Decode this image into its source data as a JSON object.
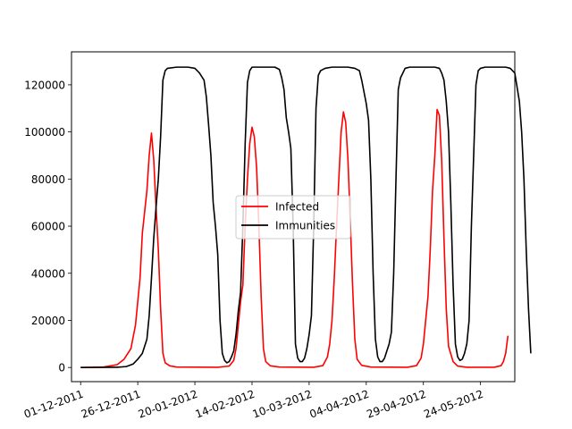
{
  "chart_data": {
    "type": "line",
    "title": "",
    "xlabel": "",
    "ylabel": "",
    "x_ticks": [
      "01-12-2011",
      "26-12-2011",
      "20-01-2012",
      "14-02-2012",
      "10-03-2012",
      "04-04-2012",
      "29-04-2012",
      "24-05-2012"
    ],
    "y_ticks": [
      0,
      20000,
      40000,
      60000,
      80000,
      100000,
      120000
    ],
    "y_tick_labels": [
      "0",
      "20000",
      "40000",
      "60000",
      "80000",
      "100000",
      "120000"
    ],
    "xlim": [
      "27-11-2011",
      "08-06-2012"
    ],
    "ylim": [
      -6000,
      134000
    ],
    "grid": false,
    "legend_position": "center",
    "series": [
      {
        "name": "Infected",
        "color": "#ff0000",
        "points": [
          [
            "01-12-2011",
            0
          ],
          [
            "11-12-2011",
            200
          ],
          [
            "17-12-2011",
            1200
          ],
          [
            "20-12-2011",
            3500
          ],
          [
            "23-12-2011",
            8000
          ],
          [
            "25-12-2011",
            18000
          ],
          [
            "27-12-2011",
            38000
          ],
          [
            "28-12-2011",
            57000
          ],
          [
            "29-12-2011",
            66000
          ],
          [
            "30-12-2011",
            75000
          ],
          [
            "31-12-2011",
            90000
          ],
          [
            "01-01-2012",
            99500
          ],
          [
            "02-01-2012",
            88000
          ],
          [
            "03-01-2012",
            68000
          ],
          [
            "04-01-2012",
            50000
          ],
          [
            "05-01-2012",
            25000
          ],
          [
            "06-01-2012",
            6000
          ],
          [
            "07-01-2012",
            2000
          ],
          [
            "09-01-2012",
            700
          ],
          [
            "12-01-2012",
            200
          ],
          [
            "30-01-2012",
            100
          ],
          [
            "04-02-2012",
            600
          ],
          [
            "06-02-2012",
            3000
          ],
          [
            "07-02-2012",
            8000
          ],
          [
            "08-02-2012",
            18000
          ],
          [
            "09-02-2012",
            28000
          ],
          [
            "10-02-2012",
            35000
          ],
          [
            "11-02-2012",
            60000
          ],
          [
            "12-02-2012",
            80000
          ],
          [
            "13-02-2012",
            95000
          ],
          [
            "14-02-2012",
            102000
          ],
          [
            "15-02-2012",
            98000
          ],
          [
            "16-02-2012",
            85000
          ],
          [
            "17-02-2012",
            60000
          ],
          [
            "18-02-2012",
            30000
          ],
          [
            "19-02-2012",
            8000
          ],
          [
            "20-02-2012",
            2500
          ],
          [
            "22-02-2012",
            700
          ],
          [
            "26-02-2012",
            200
          ],
          [
            "12-03-2012",
            100
          ],
          [
            "16-03-2012",
            800
          ],
          [
            "18-03-2012",
            4500
          ],
          [
            "19-03-2012",
            10000
          ],
          [
            "20-03-2012",
            20000
          ],
          [
            "21-03-2012",
            38000
          ],
          [
            "22-03-2012",
            60000
          ],
          [
            "23-03-2012",
            80000
          ],
          [
            "24-03-2012",
            100000
          ],
          [
            "25-03-2012",
            108500
          ],
          [
            "26-03-2012",
            104000
          ],
          [
            "27-03-2012",
            88000
          ],
          [
            "28-03-2012",
            62000
          ],
          [
            "29-03-2012",
            35000
          ],
          [
            "30-03-2012",
            12000
          ],
          [
            "31-03-2012",
            3500
          ],
          [
            "02-04-2012",
            900
          ],
          [
            "06-04-2012",
            200
          ],
          [
            "22-04-2012",
            100
          ],
          [
            "26-04-2012",
            800
          ],
          [
            "28-04-2012",
            4000
          ],
          [
            "29-04-2012",
            10000
          ],
          [
            "01-05-2012",
            30000
          ],
          [
            "02-05-2012",
            50000
          ],
          [
            "03-05-2012",
            75000
          ],
          [
            "04-05-2012",
            90000
          ],
          [
            "05-05-2012",
            109500
          ],
          [
            "06-05-2012",
            107000
          ],
          [
            "07-05-2012",
            88000
          ],
          [
            "08-05-2012",
            55000
          ],
          [
            "09-05-2012",
            25000
          ],
          [
            "10-05-2012",
            9000
          ],
          [
            "12-05-2012",
            2500
          ],
          [
            "14-05-2012",
            600
          ],
          [
            "18-05-2012",
            100
          ],
          [
            "30-05-2012",
            100
          ],
          [
            "02-06-2012",
            800
          ],
          [
            "03-06-2012",
            2500
          ],
          [
            "04-06-2012",
            6000
          ],
          [
            "05-06-2012",
            13500
          ]
        ]
      },
      {
        "name": "Immunities",
        "color": "#000000",
        "points": [
          [
            "01-12-2011",
            0
          ],
          [
            "17-12-2011",
            100
          ],
          [
            "21-12-2011",
            400
          ],
          [
            "24-12-2011",
            1500
          ],
          [
            "26-12-2011",
            3500
          ],
          [
            "28-12-2011",
            6000
          ],
          [
            "30-12-2011",
            12000
          ],
          [
            "31-12-2011",
            22000
          ],
          [
            "01-01-2012",
            38000
          ],
          [
            "02-01-2012",
            55000
          ],
          [
            "03-01-2012",
            68000
          ],
          [
            "04-01-2012",
            80000
          ],
          [
            "05-01-2012",
            98000
          ],
          [
            "06-01-2012",
            122000
          ],
          [
            "07-01-2012",
            126000
          ],
          [
            "08-01-2012",
            127000
          ],
          [
            "12-01-2012",
            127500
          ],
          [
            "17-01-2012",
            127500
          ],
          [
            "20-01-2012",
            127000
          ],
          [
            "22-01-2012",
            125000
          ],
          [
            "24-01-2012",
            122000
          ],
          [
            "25-01-2012",
            115000
          ],
          [
            "26-01-2012",
            103000
          ],
          [
            "27-01-2012",
            90000
          ],
          [
            "28-01-2012",
            70000
          ],
          [
            "29-01-2012",
            60000
          ],
          [
            "30-01-2012",
            48000
          ],
          [
            "31-01-2012",
            20000
          ],
          [
            "01-02-2012",
            6000
          ],
          [
            "02-02-2012",
            3000
          ],
          [
            "03-02-2012",
            2000
          ],
          [
            "04-02-2012",
            2500
          ],
          [
            "05-02-2012",
            4500
          ],
          [
            "06-02-2012",
            7000
          ],
          [
            "07-02-2012",
            14000
          ],
          [
            "08-02-2012",
            24000
          ],
          [
            "09-02-2012",
            32000
          ],
          [
            "10-02-2012",
            60000
          ],
          [
            "11-02-2012",
            95000
          ],
          [
            "12-02-2012",
            121000
          ],
          [
            "13-02-2012",
            126000
          ],
          [
            "14-02-2012",
            127500
          ],
          [
            "20-02-2012",
            127500
          ],
          [
            "24-02-2012",
            127500
          ],
          [
            "26-02-2012",
            126500
          ],
          [
            "27-02-2012",
            123000
          ],
          [
            "28-02-2012",
            118000
          ],
          [
            "29-02-2012",
            106000
          ],
          [
            "01-03-2012",
            100000
          ],
          [
            "02-03-2012",
            93000
          ],
          [
            "03-03-2012",
            60000
          ],
          [
            "04-03-2012",
            10000
          ],
          [
            "05-03-2012",
            4000
          ],
          [
            "06-03-2012",
            2500
          ],
          [
            "07-03-2012",
            2500
          ],
          [
            "08-03-2012",
            4000
          ],
          [
            "09-03-2012",
            8000
          ],
          [
            "10-03-2012",
            14000
          ],
          [
            "11-03-2012",
            22000
          ],
          [
            "12-03-2012",
            60000
          ],
          [
            "13-03-2012",
            110000
          ],
          [
            "14-03-2012",
            124000
          ],
          [
            "15-03-2012",
            126000
          ],
          [
            "17-03-2012",
            127000
          ],
          [
            "20-03-2012",
            127500
          ],
          [
            "27-03-2012",
            127500
          ],
          [
            "30-03-2012",
            127000
          ],
          [
            "01-04-2012",
            126000
          ],
          [
            "02-04-2012",
            122000
          ],
          [
            "04-04-2012",
            112000
          ],
          [
            "05-04-2012",
            105000
          ],
          [
            "06-04-2012",
            80000
          ],
          [
            "07-04-2012",
            40000
          ],
          [
            "08-04-2012",
            12000
          ],
          [
            "09-04-2012",
            4500
          ],
          [
            "10-04-2012",
            2500
          ],
          [
            "11-04-2012",
            2500
          ],
          [
            "12-04-2012",
            4000
          ],
          [
            "13-04-2012",
            7000
          ],
          [
            "14-04-2012",
            10000
          ],
          [
            "15-04-2012",
            15000
          ],
          [
            "16-04-2012",
            40000
          ],
          [
            "17-04-2012",
            80000
          ],
          [
            "18-04-2012",
            118000
          ],
          [
            "19-04-2012",
            123000
          ],
          [
            "20-04-2012",
            125000
          ],
          [
            "21-04-2012",
            127000
          ],
          [
            "23-04-2012",
            127500
          ],
          [
            "04-05-2012",
            127500
          ],
          [
            "06-05-2012",
            127000
          ],
          [
            "07-05-2012",
            125000
          ],
          [
            "08-05-2012",
            122000
          ],
          [
            "09-05-2012",
            113000
          ],
          [
            "10-05-2012",
            100000
          ],
          [
            "11-05-2012",
            70000
          ],
          [
            "12-05-2012",
            35000
          ],
          [
            "13-05-2012",
            10000
          ],
          [
            "14-05-2012",
            4500
          ],
          [
            "15-05-2012",
            3000
          ],
          [
            "16-05-2012",
            3500
          ],
          [
            "17-05-2012",
            6000
          ],
          [
            "18-05-2012",
            10000
          ],
          [
            "19-05-2012",
            20000
          ],
          [
            "20-05-2012",
            60000
          ],
          [
            "21-05-2012",
            90000
          ],
          [
            "22-05-2012",
            120000
          ],
          [
            "23-05-2012",
            126000
          ],
          [
            "24-05-2012",
            127000
          ],
          [
            "26-05-2012",
            127500
          ],
          [
            "04-06-2012",
            127500
          ],
          [
            "06-06-2012",
            127000
          ],
          [
            "08-06-2012",
            125000
          ],
          [
            "10-06-2012",
            113000
          ],
          [
            "11-06-2012",
            100000
          ],
          [
            "12-06-2012",
            80000
          ],
          [
            "13-06-2012",
            50000
          ],
          [
            "14-06-2012",
            25000
          ],
          [
            "15-06-2012",
            6000
          ]
        ]
      }
    ]
  }
}
